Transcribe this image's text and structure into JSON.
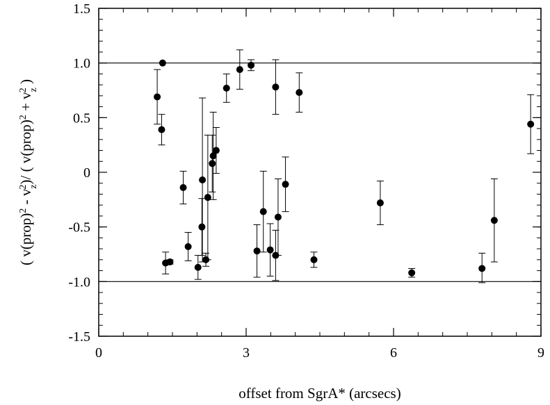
{
  "chart_data": {
    "type": "scatter",
    "xlabel": "offset from SgrA* (arcsecs)",
    "ylabel": {
      "open": "( v(prop)",
      "sup1": "2",
      "minus": " - v",
      "sub1": "z",
      "sup2": "2",
      "div": ")/ ( v(prop)",
      "sup3": "2",
      "plus": " + v",
      "sub2": "z",
      "sup4": "2",
      "close": " )"
    },
    "xlim": [
      0,
      9
    ],
    "ylim": [
      -1.5,
      1.5
    ],
    "x_ticks": [
      {
        "value": 0,
        "label": "0"
      },
      {
        "value": 3,
        "label": "3"
      },
      {
        "value": 6,
        "label": "6"
      },
      {
        "value": 9,
        "label": "9"
      }
    ],
    "y_ticks": [
      {
        "value": 1.5,
        "label": "1.5"
      },
      {
        "value": 1.0,
        "label": "1.0"
      },
      {
        "value": 0.5,
        "label": "0.5"
      },
      {
        "value": 0,
        "label": "0"
      },
      {
        "value": -0.5,
        "label": "-0.5"
      },
      {
        "value": -1.0,
        "label": "-1.0"
      },
      {
        "value": -1.5,
        "label": "-1.5"
      }
    ],
    "x_minor_step": 0.5,
    "y_minor_step": 0.1,
    "reference_lines": [
      1.0,
      -1.0
    ],
    "points": [
      {
        "x": 1.19,
        "y": 0.69,
        "lo": 0.44,
        "hi": 0.94
      },
      {
        "x": 1.3,
        "y": 1.0,
        "lo": 1.0,
        "hi": 1.0
      },
      {
        "x": 1.28,
        "y": 0.39,
        "lo": 0.25,
        "hi": 0.53
      },
      {
        "x": 1.36,
        "y": -0.83,
        "lo": -0.93,
        "hi": -0.73
      },
      {
        "x": 1.45,
        "y": -0.82,
        "lo": -0.84,
        "hi": -0.8
      },
      {
        "x": 1.72,
        "y": -0.14,
        "lo": -0.29,
        "hi": 0.01
      },
      {
        "x": 1.82,
        "y": -0.68,
        "lo": -0.81,
        "hi": -0.55
      },
      {
        "x": 2.02,
        "y": -0.87,
        "lo": -0.98,
        "hi": -0.76
      },
      {
        "x": 2.1,
        "y": -0.5,
        "lo": -0.76,
        "hi": -0.24
      },
      {
        "x": 2.11,
        "y": -0.07,
        "lo": -0.82,
        "hi": 0.68
      },
      {
        "x": 2.18,
        "y": -0.8,
        "lo": -0.86,
        "hi": -0.74
      },
      {
        "x": 2.22,
        "y": -0.23,
        "lo": -0.8,
        "hi": 0.34
      },
      {
        "x": 2.31,
        "y": 0.08,
        "lo": -0.18,
        "hi": 0.34
      },
      {
        "x": 2.33,
        "y": 0.15,
        "lo": -0.25,
        "hi": 0.55
      },
      {
        "x": 2.39,
        "y": 0.2,
        "lo": -0.01,
        "hi": 0.41
      },
      {
        "x": 2.6,
        "y": 0.77,
        "lo": 0.64,
        "hi": 0.9
      },
      {
        "x": 2.87,
        "y": 0.94,
        "lo": 0.76,
        "hi": 1.12
      },
      {
        "x": 3.1,
        "y": 0.98,
        "lo": 0.93,
        "hi": 1.03
      },
      {
        "x": 3.22,
        "y": -0.72,
        "lo": -0.96,
        "hi": -0.48
      },
      {
        "x": 3.35,
        "y": -0.36,
        "lo": -0.73,
        "hi": 0.01
      },
      {
        "x": 3.49,
        "y": -0.71,
        "lo": -0.95,
        "hi": -0.47
      },
      {
        "x": 3.6,
        "y": 0.78,
        "lo": 0.53,
        "hi": 1.03
      },
      {
        "x": 3.6,
        "y": -0.76,
        "lo": -0.99,
        "hi": -0.53
      },
      {
        "x": 3.65,
        "y": -0.41,
        "lo": -0.76,
        "hi": -0.06
      },
      {
        "x": 3.8,
        "y": -0.11,
        "lo": -0.36,
        "hi": 0.14
      },
      {
        "x": 4.08,
        "y": 0.73,
        "lo": 0.55,
        "hi": 0.91
      },
      {
        "x": 4.38,
        "y": -0.8,
        "lo": -0.87,
        "hi": -0.73
      },
      {
        "x": 5.73,
        "y": -0.28,
        "lo": -0.48,
        "hi": -0.08
      },
      {
        "x": 6.37,
        "y": -0.92,
        "lo": -0.96,
        "hi": -0.88
      },
      {
        "x": 7.8,
        "y": -0.88,
        "lo": -1.01,
        "hi": -0.74
      },
      {
        "x": 8.05,
        "y": -0.44,
        "lo": -0.82,
        "hi": -0.06
      },
      {
        "x": 8.79,
        "y": 0.44,
        "lo": 0.17,
        "hi": 0.71
      }
    ]
  }
}
